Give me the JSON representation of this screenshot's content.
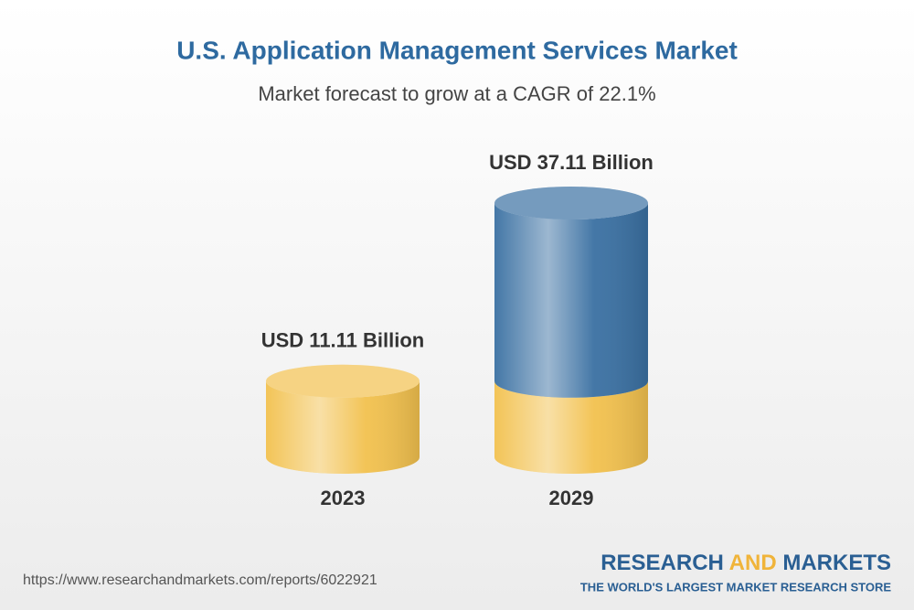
{
  "chart_data": {
    "type": "cylinder",
    "title": "U.S. Application Management Services Market",
    "subtitle": "Market forecast to grow at a CAGR of 22.1%",
    "categories": [
      "2023",
      "2029"
    ],
    "values": [
      11.11,
      37.11
    ],
    "value_labels": [
      "USD 11.11 Billion",
      "USD 37.11 Billion"
    ],
    "colors": [
      "#f2c14e",
      "#3a70a2"
    ]
  },
  "footer": {
    "url": "https://www.researchandmarkets.com/reports/6022921",
    "logo": {
      "word1": "RESEARCH",
      "word2": "AND",
      "word3": "MARKETS",
      "tagline": "THE WORLD'S LARGEST MARKET RESEARCH STORE"
    }
  }
}
